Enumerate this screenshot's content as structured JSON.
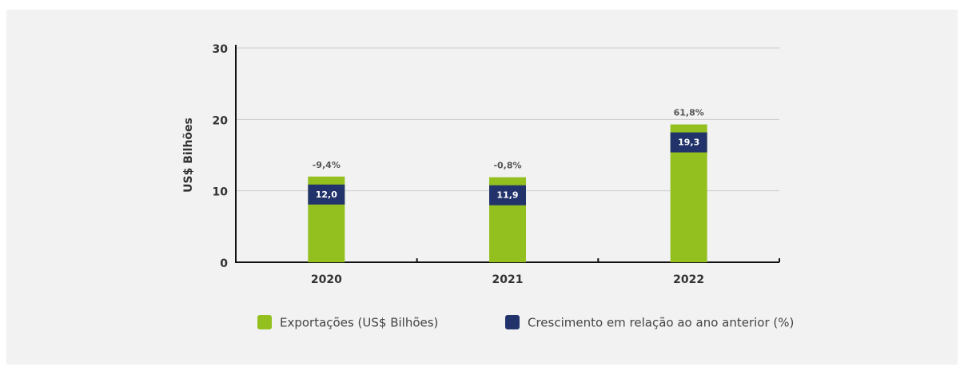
{
  "chart_data": {
    "type": "bar",
    "categories": [
      "2020",
      "2021",
      "2022"
    ],
    "y_label": "US$ Bilhões",
    "ylim": [
      0,
      30
    ],
    "yticks": [
      0,
      10,
      20,
      30
    ],
    "grid": true,
    "series": [
      {
        "name": "Exportações (US$ Bilhões)",
        "color": "#93c01f",
        "values": [
          12.0,
          11.9,
          19.3
        ],
        "value_labels": [
          "12,0",
          "11,9",
          "19,3"
        ]
      },
      {
        "name": "Crescimento em relação ao ano anterior (%)",
        "color": "#22336b",
        "values": [
          -9.4,
          -0.8,
          61.8
        ],
        "value_labels": [
          "-9,4%",
          "-0,8%",
          "61,8%"
        ]
      }
    ]
  }
}
